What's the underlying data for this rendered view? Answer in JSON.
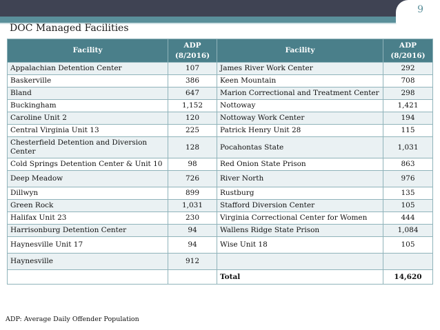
{
  "page_number": "9",
  "title": "DOC Managed Facilities",
  "table": {
    "headers": {
      "facility": "Facility",
      "adp": "ADP",
      "adp_date": "(8/2016)"
    },
    "rows": [
      {
        "left_facility": "Appalachian Detention Center",
        "left_adp": "107",
        "right_facility": "James River Work Center",
        "right_adp": "292"
      },
      {
        "left_facility": "Baskerville",
        "left_adp": "386",
        "right_facility": "Keen Mountain",
        "right_adp": "708"
      },
      {
        "left_facility": "Bland",
        "left_adp": "647",
        "right_facility": "Marion Correctional and Treatment Center",
        "right_adp": "298"
      },
      {
        "left_facility": "Buckingham",
        "left_adp": "1,152",
        "right_facility": "Nottoway",
        "right_adp": "1,421"
      },
      {
        "left_facility": "Caroline Unit 2",
        "left_adp": "120",
        "right_facility": "Nottoway Work Center",
        "right_adp": "194"
      },
      {
        "left_facility": "Central Virginia Unit 13",
        "left_adp": "225",
        "right_facility": "Patrick Henry Unit 28",
        "right_adp": "115"
      },
      {
        "left_facility": "Chesterfield Detention and Diversion Center",
        "left_adp": "128",
        "right_facility": "Pocahontas State",
        "right_adp": "1,031"
      },
      {
        "left_facility": "Cold Springs Detention Center  & Unit 10",
        "left_adp": "98",
        "right_facility": "Red Onion State Prison",
        "right_adp": "863"
      },
      {
        "left_facility": "Deep Meadow",
        "left_adp": "726",
        "right_facility": "River North",
        "right_adp": "976"
      },
      {
        "left_facility": "Dillwyn",
        "left_adp": "899",
        "right_facility": "Rustburg",
        "right_adp": "135"
      },
      {
        "left_facility": "Green Rock",
        "left_adp": "1,031",
        "right_facility": "Stafford Diversion Center",
        "right_adp": "105"
      },
      {
        "left_facility": "Halifax Unit 23",
        "left_adp": "230",
        "right_facility": "Virginia Correctional Center  for Women",
        "right_adp": "444"
      },
      {
        "left_facility": "Harrisonburg Detention Center",
        "left_adp": "94",
        "right_facility": "Wallens Ridge State Prison",
        "right_adp": "1,084"
      },
      {
        "left_facility": "Haynesville Unit 17",
        "left_adp": "94",
        "right_facility": "Wise Unit 18",
        "right_adp": "105"
      },
      {
        "left_facility": "Haynesville",
        "left_adp": "912",
        "right_facility": "",
        "right_adp": ""
      }
    ],
    "total_label": "Total",
    "total_value": "14,620"
  },
  "footnote": "ADP:  Average Daily Offender Population",
  "colors": {
    "header_bg": "#4a7f8a",
    "top_band": "#3f4353",
    "accent_band": "#5a8f9a",
    "row_alt": "#eaf1f3"
  }
}
